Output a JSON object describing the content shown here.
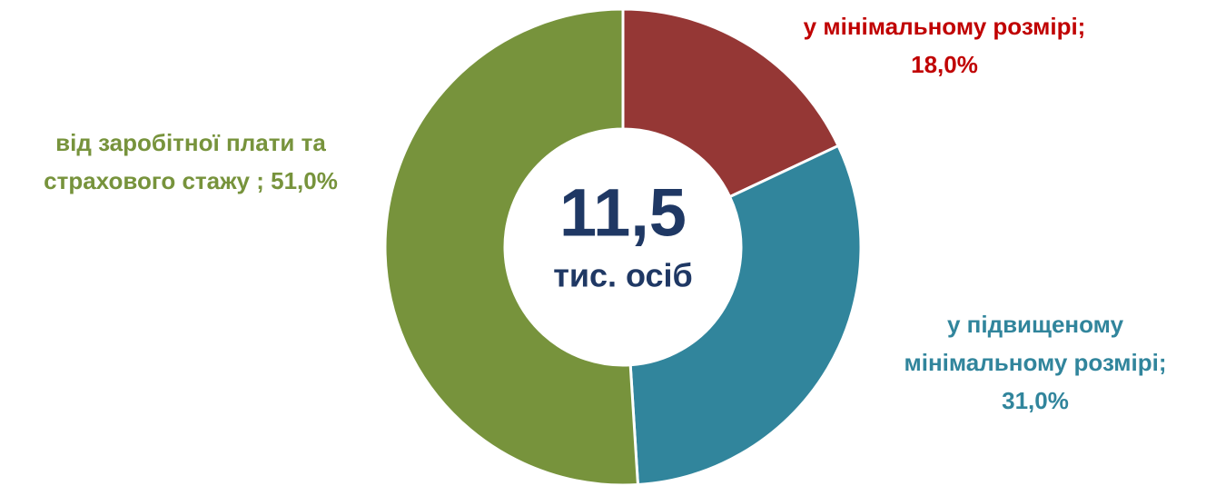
{
  "chart_data": {
    "type": "donut",
    "categories": [
      "у мінімальному розмірі;",
      "у підвищеному мінімальному розмірі;",
      "від заробітної плати та страхового стажу ;"
    ],
    "values": [
      18,
      31,
      51
    ],
    "value_labels": [
      "18,0%",
      "31,0%",
      "51,0%"
    ],
    "colors": [
      "#953735",
      "#31859c",
      "#77933c"
    ],
    "label_colors": [
      "#c00000",
      "#31859c",
      "#77933c"
    ],
    "center_text": "11,5",
    "center_subtext": "тис. осіб"
  }
}
